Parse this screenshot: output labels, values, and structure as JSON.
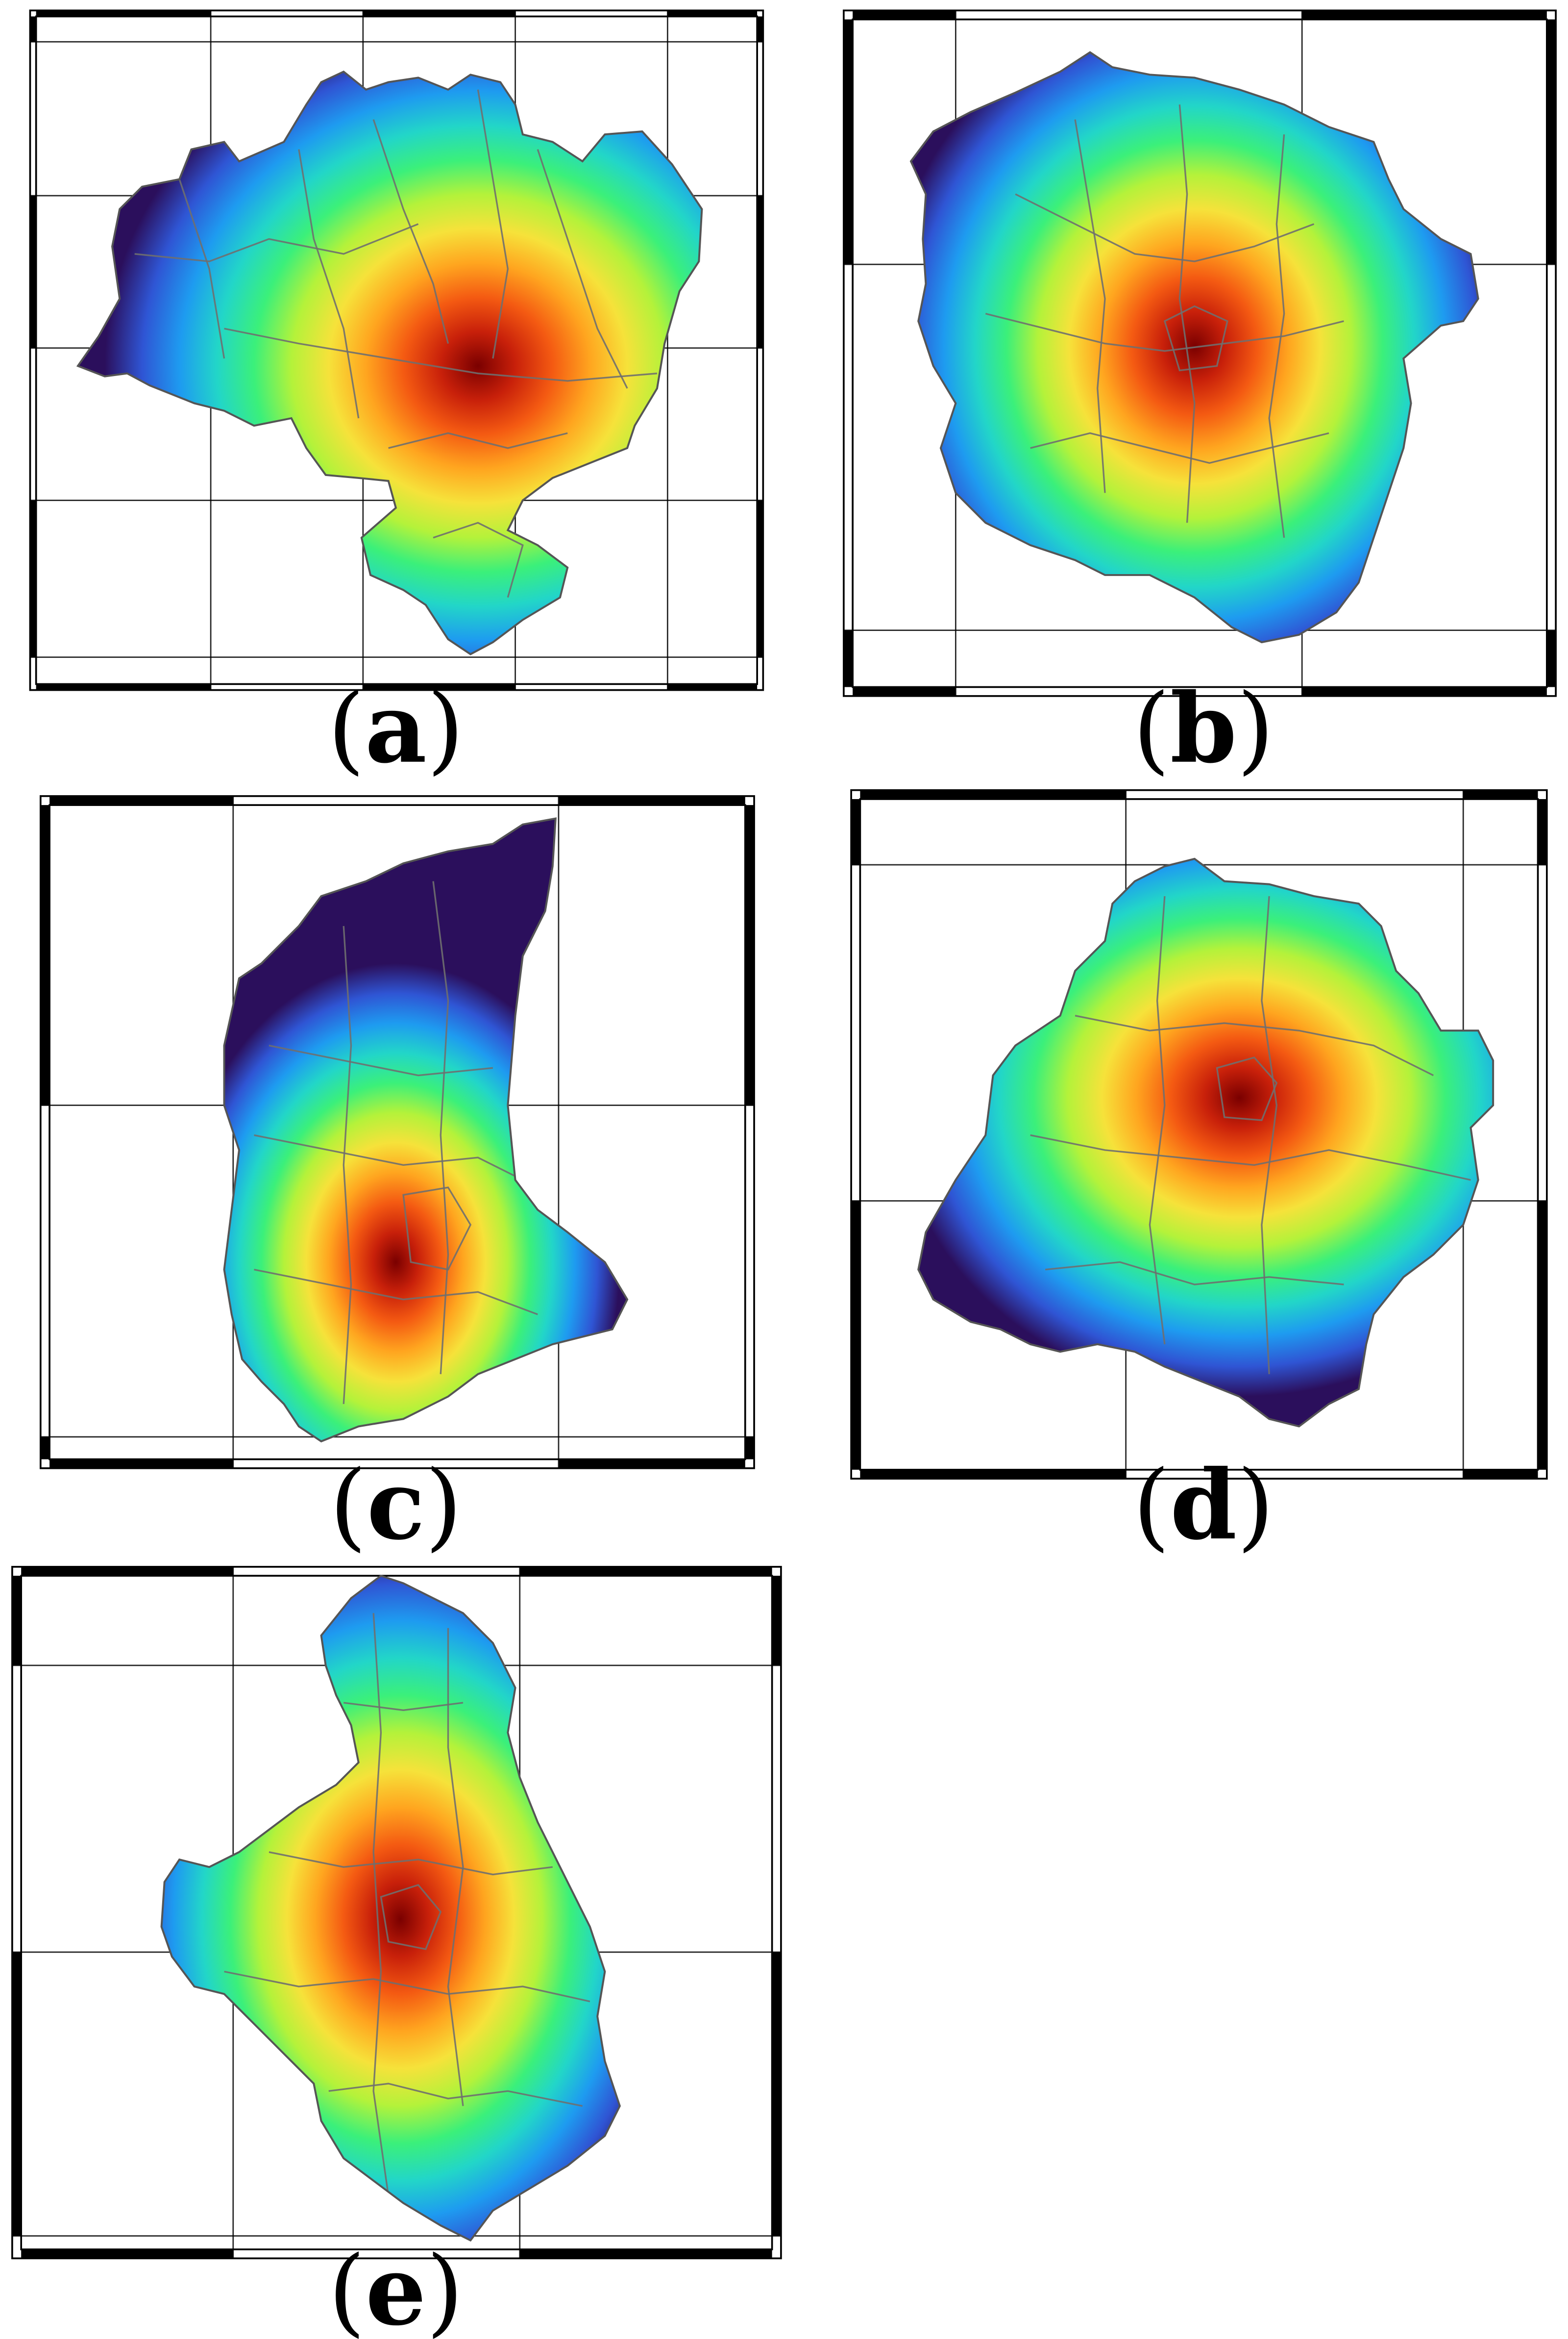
{
  "figure": {
    "panels": [
      {
        "id": "a",
        "caption_open": "(",
        "caption_letter": "a",
        "caption_close": ")"
      },
      {
        "id": "b",
        "caption_open": "(",
        "caption_letter": "b",
        "caption_close": ")"
      },
      {
        "id": "c",
        "caption_open": "(",
        "caption_letter": "c",
        "caption_close": ")"
      },
      {
        "id": "d",
        "caption_open": "(",
        "caption_letter": "d",
        "caption_close": ")"
      },
      {
        "id": "e",
        "caption_open": "(",
        "caption_letter": "e",
        "caption_close": ")"
      }
    ],
    "colors": {
      "colormap": [
        "#2b0f5c",
        "#2f55d4",
        "#1e9bf0",
        "#22d6c8",
        "#3bf07a",
        "#b4f23a",
        "#f6e23a",
        "#ffa51f",
        "#f45a12",
        "#c8200a",
        "#7a0000"
      ],
      "frame": "#000000",
      "boundary_lines": "#6f6f6f",
      "background": "#ffffff"
    }
  }
}
